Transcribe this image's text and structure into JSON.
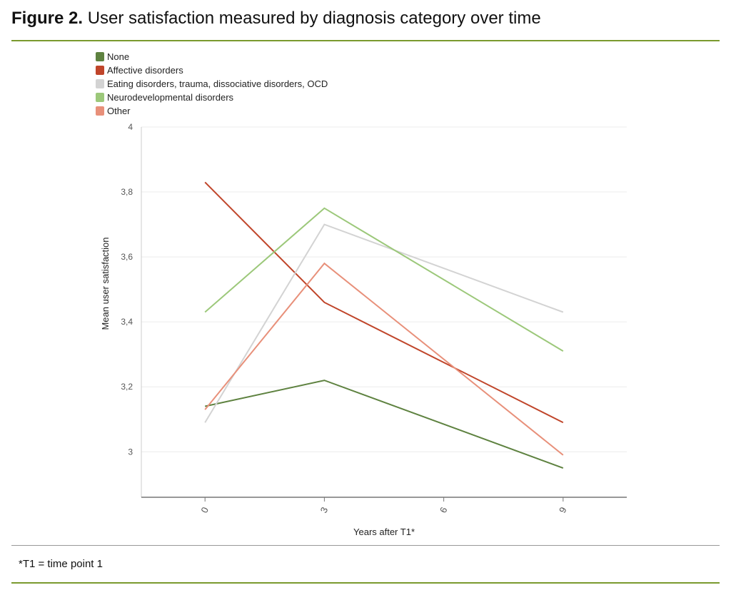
{
  "figure": {
    "label": "Figure 2.",
    "caption": "User satisfaction measured by diagnosis category over time",
    "footnote": "*T1 = time point 1"
  },
  "chart_data": {
    "type": "line",
    "xlabel": "Years after T1*",
    "ylabel": "Mean user satisfaction",
    "x_ticks": [
      "0",
      "3",
      "6",
      "9"
    ],
    "y_ticks": [
      "3",
      "3,2",
      "3,4",
      "3,6",
      "3,8",
      "4"
    ],
    "xlim": [
      -1.6,
      10.6
    ],
    "ylim": [
      2.86,
      4.0
    ],
    "grid": "horizontal",
    "legend_position": "top-left",
    "x": [
      0,
      3,
      9
    ],
    "series": [
      {
        "name": "None",
        "color": "#5e8240",
        "values": [
          3.14,
          3.22,
          2.95
        ]
      },
      {
        "name": "Affective disorders",
        "color": "#c0452a",
        "values": [
          3.83,
          3.46,
          3.09
        ]
      },
      {
        "name": "Eating disorders, trauma, dissociative disorders, OCD",
        "color": "#d3d3d3",
        "values": [
          3.09,
          3.7,
          3.43
        ]
      },
      {
        "name": "Neurodevelopmental disorders",
        "color": "#9cc87a",
        "values": [
          3.43,
          3.75,
          3.31
        ]
      },
      {
        "name": "Other",
        "color": "#e8907a",
        "values": [
          3.13,
          3.58,
          2.99
        ]
      }
    ]
  }
}
